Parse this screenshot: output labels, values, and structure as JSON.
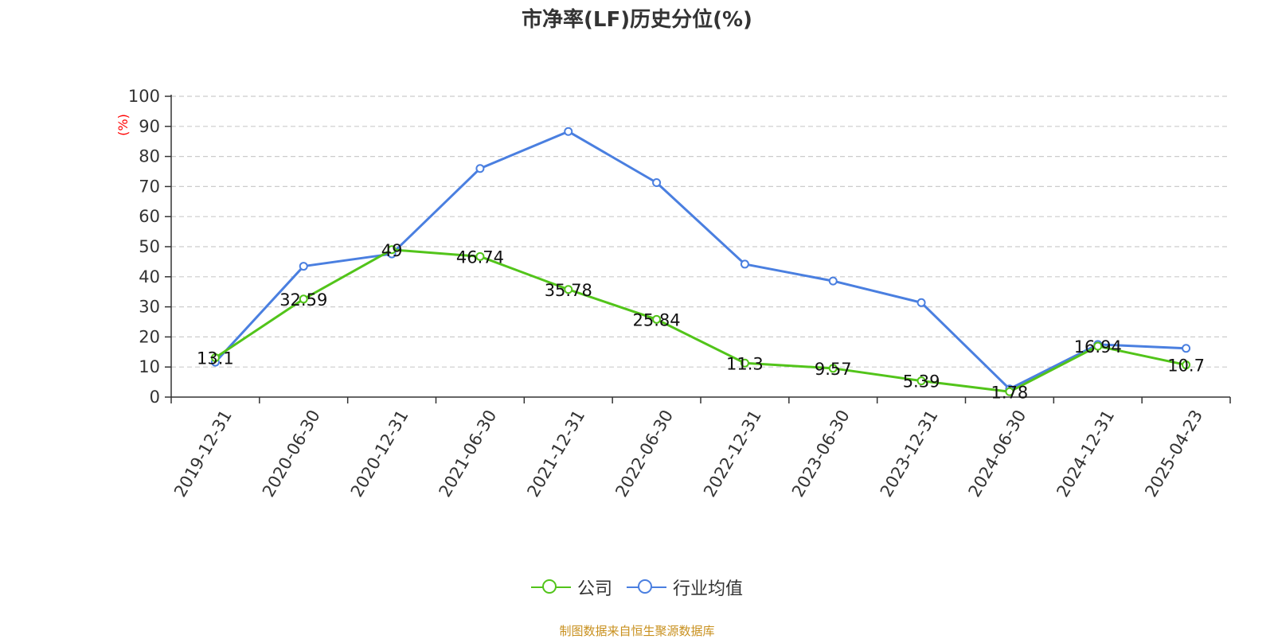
{
  "title": "市净率(LF)历史分位(%)",
  "source": "制图数据来自恒生聚源数据库",
  "colors": {
    "company": "#52c41a",
    "industry": "#4a7fe0",
    "axis": "#333333",
    "unit": "#ff0000",
    "source": "#c8901e"
  },
  "chart_data": {
    "type": "line",
    "categories": [
      "2019-12-31",
      "2020-06-30",
      "2020-12-31",
      "2021-06-30",
      "2021-12-31",
      "2022-06-30",
      "2022-12-31",
      "2023-06-30",
      "2023-12-31",
      "2024-06-30",
      "2024-12-31",
      "2025-04-23"
    ],
    "ylabel": "(%)",
    "ylim": [
      0,
      100
    ],
    "yticks": [
      0,
      10,
      20,
      30,
      40,
      50,
      60,
      70,
      80,
      90,
      100
    ],
    "grid": true,
    "legend_position": "bottom",
    "series": [
      {
        "name": "公司",
        "values": [
          13.1,
          32.59,
          49,
          46.74,
          35.78,
          25.84,
          11.3,
          9.57,
          5.39,
          1.78,
          16.94,
          10.7
        ],
        "labels": [
          "13.1",
          "32.59",
          "49",
          "46.74",
          "35.78",
          "25.84",
          "11.3",
          "9.57",
          "5.39",
          "1.78",
          "16.94",
          "10.7"
        ]
      },
      {
        "name": "行业均值",
        "values": [
          11.6,
          43.5,
          47.6,
          76,
          88.3,
          71.3,
          44.2,
          38.6,
          31.4,
          2.7,
          17.5,
          16.2
        ]
      }
    ]
  }
}
